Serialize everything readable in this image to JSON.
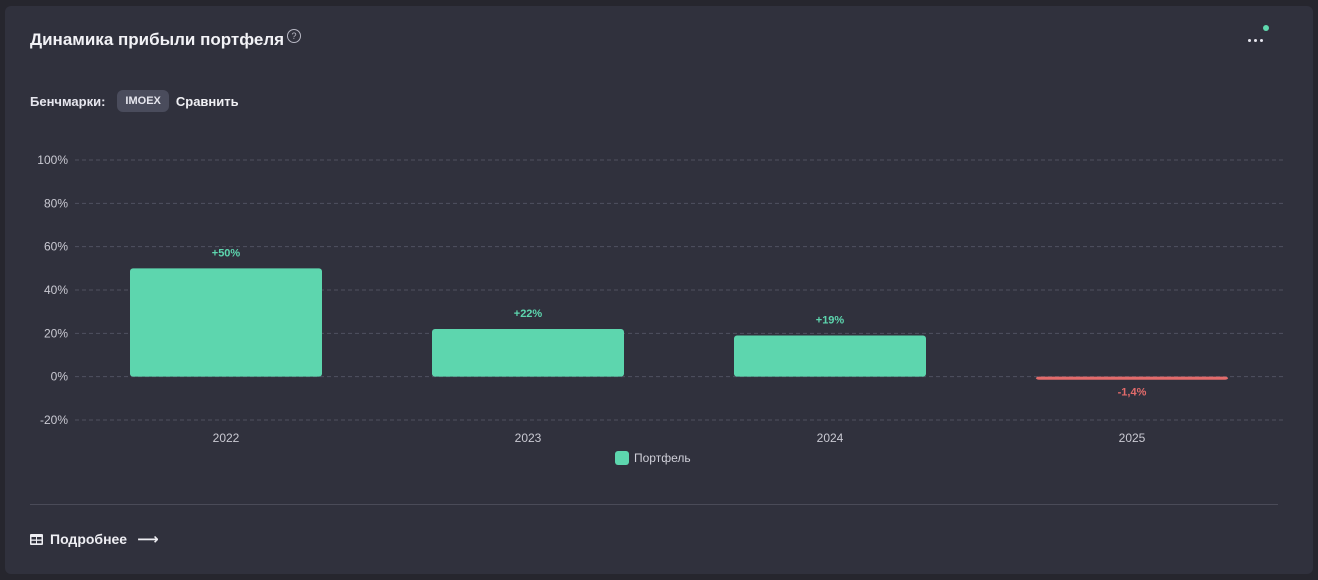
{
  "header": {
    "title": "Динамика прибыли портфеля",
    "help_icon": "?"
  },
  "benchmarks": {
    "label": "Бенчмарки:",
    "chip": "IMOEX",
    "compare": "Сравнить"
  },
  "footer": {
    "more": "Подробнее",
    "arrow": "⟶"
  },
  "colors": {
    "positive": "#5dd6ae",
    "negative": "#e36b6b"
  },
  "chart_data": {
    "type": "bar",
    "categories": [
      "2022",
      "2023",
      "2024",
      "2025"
    ],
    "series": [
      {
        "name": "Портфель",
        "values": [
          50,
          22,
          19,
          -1.4
        ]
      }
    ],
    "data_labels": [
      "+50%",
      "+22%",
      "+19%",
      "-1,4%"
    ],
    "ylim": [
      -20,
      100
    ],
    "yticks": [
      100,
      80,
      60,
      40,
      20,
      0,
      -20
    ],
    "ytick_labels": [
      "100%",
      "80%",
      "60%",
      "40%",
      "20%",
      "0%",
      "-20%"
    ],
    "grid": true,
    "legend": "bottom-center",
    "title": "Динамика прибыли портфеля"
  }
}
